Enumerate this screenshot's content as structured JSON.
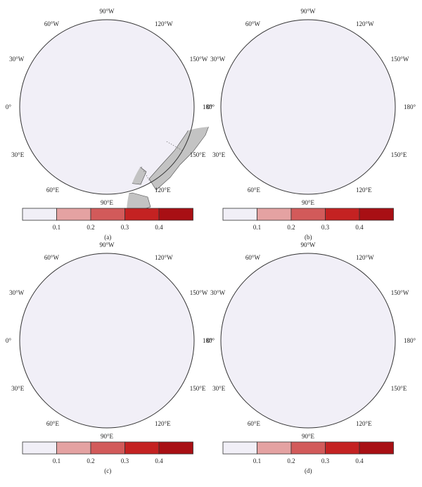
{
  "panels": [
    {
      "label": "(a)",
      "pattern": "a"
    },
    {
      "label": "(b)",
      "pattern": "b"
    },
    {
      "label": "(c)",
      "pattern": "c"
    },
    {
      "label": "(d)",
      "pattern": "d"
    }
  ],
  "longitude_labels": [
    "90°W",
    "120°W",
    "150°W",
    "180°",
    "150°E",
    "120°E",
    "90°E",
    "60°E",
    "30°E",
    "0°",
    "30°W",
    "60°W"
  ],
  "colorbar": {
    "tick_labels": [
      "0.1",
      "0.2",
      "0.3",
      "0.4"
    ],
    "bins": [
      {
        "range": "0–0.1",
        "color": "#f1eff7"
      },
      {
        "range": "0.1–0.2",
        "color": "#e4a2a2"
      },
      {
        "range": "0.2–0.3",
        "color": "#d25a5a"
      },
      {
        "range": "0.3–0.4",
        "color": "#c42222"
      },
      {
        "range": "0.4+",
        "color": "#a80f14"
      }
    ]
  },
  "colors": {
    "land": "#c3c3c3",
    "ocean_ice_free": "#f1eff7",
    "outline": "#4a4a4a",
    "graticule": "#555555",
    "box": "#111111"
  }
}
